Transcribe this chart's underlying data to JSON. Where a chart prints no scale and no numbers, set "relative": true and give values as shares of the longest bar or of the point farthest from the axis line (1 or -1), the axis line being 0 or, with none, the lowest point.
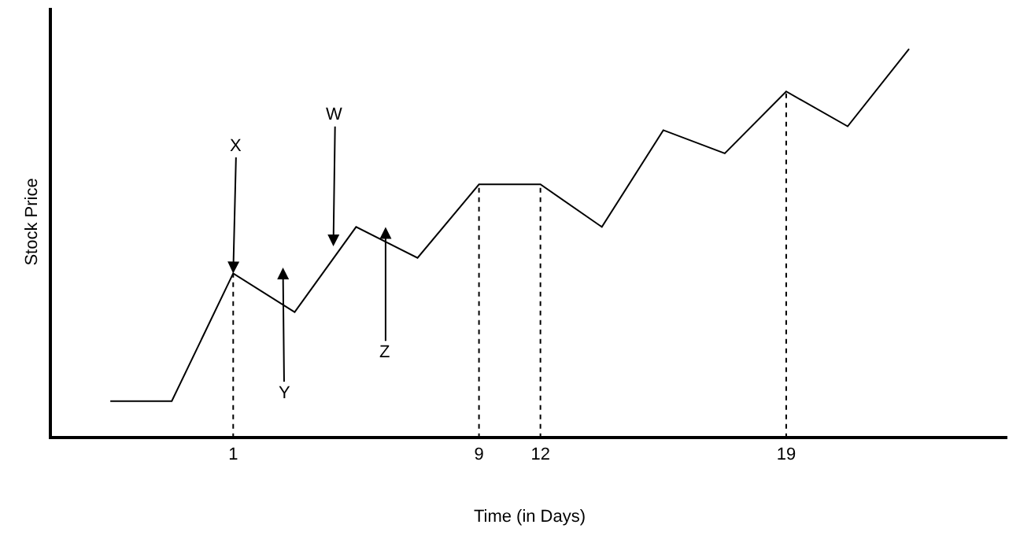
{
  "chart_data": {
    "type": "line",
    "relative": true,
    "xlabel": "Time (in Days)",
    "ylabel": "Stock Price",
    "categories": [
      null,
      null,
      "1",
      null,
      null,
      null,
      "9",
      "12",
      null,
      null,
      null,
      "19",
      null,
      null
    ],
    "series": [
      {
        "color": "#000000",
        "values": [
          0.09,
          0.09,
          0.42,
          0.32,
          0.54,
          0.46,
          0.65,
          0.65,
          0.54,
          0.79,
          0.73,
          0.89,
          0.8,
          1
        ]
      }
    ],
    "annotations": [
      {
        "text": "X",
        "x": "1",
        "y": 0.42
      },
      "Y",
      "W",
      "Z"
    ],
    "ref_lines": [
      {
        "axis": "x",
        "value": "1",
        "line_style": "dotted",
        "color": "#000000"
      },
      {
        "axis": "x",
        "value": "9",
        "line_style": "dotted",
        "color": "#000000"
      },
      {
        "axis": "x",
        "value": "12",
        "line_style": "dotted",
        "color": "#000000"
      },
      {
        "axis": "x",
        "value": "19",
        "line_style": "dotted",
        "color": "#000000"
      }
    ],
    "marker": "none",
    "line_style": "solid"
  }
}
